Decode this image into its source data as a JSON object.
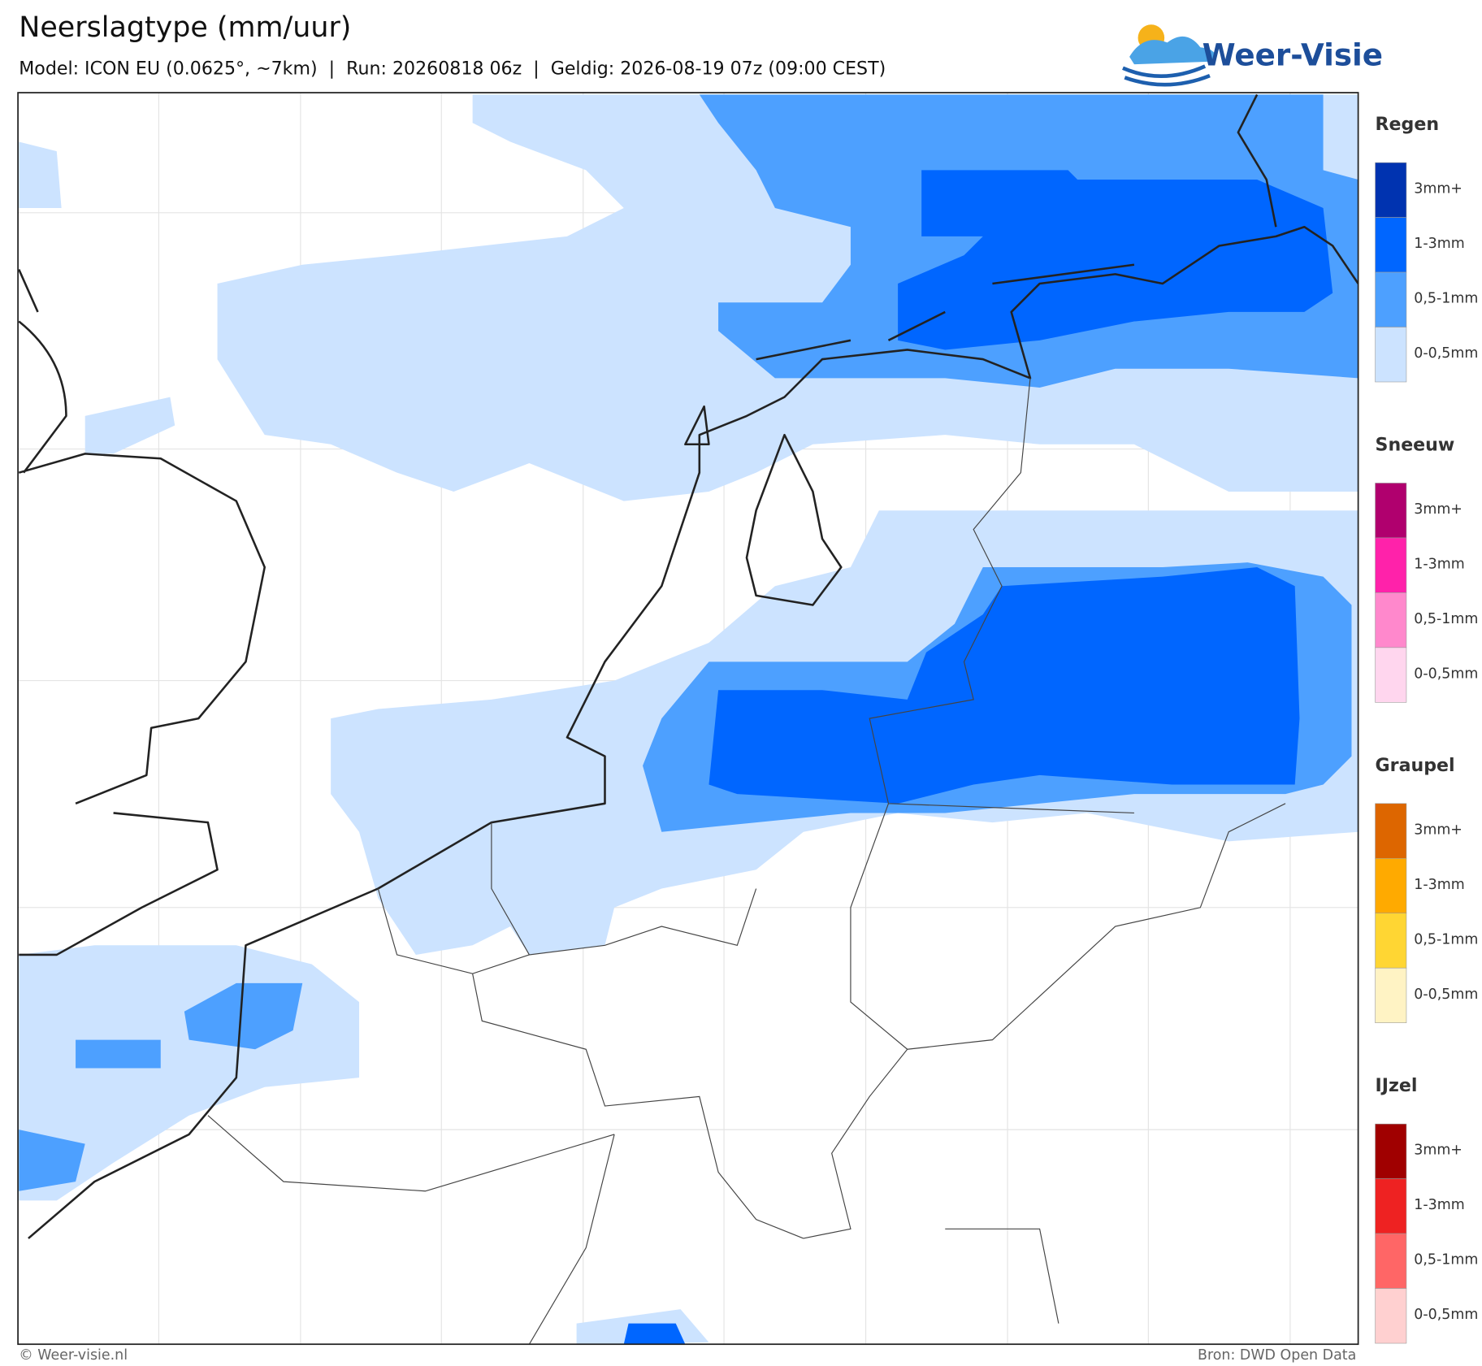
{
  "header": {
    "title": "Neerslagtype (mm/uur)",
    "subtitle": "Model: ICON EU (0.0625°, ~7km)  |  Run: 20260818 06z  |  Geldig: 2026-08-19 07z (09:00 CEST)",
    "logo": "Weer-Visie"
  },
  "legend": [
    {
      "title": "Regen",
      "items": [
        {
          "label": "3mm+",
          "color": "#0033b0"
        },
        {
          "label": "1-3mm",
          "color": "#0066ff"
        },
        {
          "label": "0,5-1mm",
          "color": "#4da0ff"
        },
        {
          "label": "0-0,5mm",
          "color": "#cce3ff"
        }
      ]
    },
    {
      "title": "Sneeuw",
      "items": [
        {
          "label": "3mm+",
          "color": "#b0006e"
        },
        {
          "label": "1-3mm",
          "color": "#ff22aa"
        },
        {
          "label": "0,5-1mm",
          "color": "#ff88cc"
        },
        {
          "label": "0-0,5mm",
          "color": "#ffd6ee"
        }
      ]
    },
    {
      "title": "Graupel",
      "items": [
        {
          "label": "3mm+",
          "color": "#dd6600"
        },
        {
          "label": "1-3mm",
          "color": "#ffaa00"
        },
        {
          "label": "0,5-1mm",
          "color": "#ffd633"
        },
        {
          "label": "0-0,5mm",
          "color": "#fff3c4"
        }
      ]
    },
    {
      "title": "IJzel",
      "items": [
        {
          "label": "3mm+",
          "color": "#a00000"
        },
        {
          "label": "1-3mm",
          "color": "#ee2222"
        },
        {
          "label": "0,5-1mm",
          "color": "#ff6666"
        },
        {
          "label": "0-0,5mm",
          "color": "#ffd0d0"
        }
      ]
    }
  ],
  "footer": {
    "left": "© Weer-visie.nl",
    "right": "Bron: DWD Open Data"
  }
}
